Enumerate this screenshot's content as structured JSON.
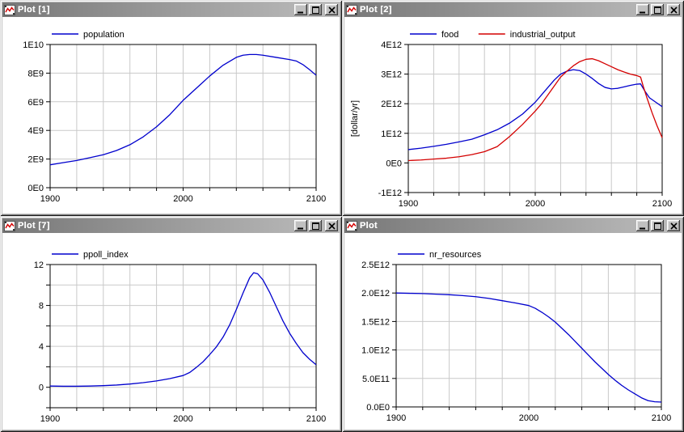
{
  "app": {
    "kind": "plot-window-grid"
  },
  "windows": [
    {
      "title": "Plot [1]"
    },
    {
      "title": "Plot [2]"
    },
    {
      "title": "Plot [7]"
    },
    {
      "title": "Plot"
    }
  ],
  "window_controls": {
    "minimize": "minimize",
    "maximize": "maximize",
    "close": "close"
  },
  "colors": {
    "curve_blue": "#0000cd",
    "curve_red": "#d40000",
    "grid": "#c9c9c9",
    "frame": "#000000",
    "titlebar_left": "#787878",
    "titlebar_right": "#bdbdbd",
    "chrome": "#c0c0c0",
    "plot_background": "#ffffff"
  },
  "chart_data": [
    {
      "type": "line",
      "window_title": "Plot [1]",
      "xlim": [
        1900,
        2100
      ],
      "x_grid_step": 20,
      "x_tick_labels": [
        {
          "value": 1900,
          "label": "1900"
        },
        {
          "value": 2000,
          "label": "2000"
        },
        {
          "value": 2100,
          "label": "2100"
        }
      ],
      "ylim": [
        0,
        10000000000.0
      ],
      "y_ticks": [
        {
          "value": 10000000000.0,
          "label": "1E10"
        },
        {
          "value": 8000000000.0,
          "label": "8E9"
        },
        {
          "value": 6000000000.0,
          "label": "6E9"
        },
        {
          "value": 4000000000.0,
          "label": "4E9"
        },
        {
          "value": 2000000000.0,
          "label": "2E9"
        },
        {
          "value": 0,
          "label": "0E0"
        }
      ],
      "ylabel": "",
      "grid": true,
      "legend_position": "top-left",
      "series": [
        {
          "name": "population",
          "color": "#0000cd",
          "x": [
            1900,
            1910,
            1920,
            1930,
            1940,
            1950,
            1960,
            1970,
            1980,
            1990,
            2000,
            2010,
            2020,
            2030,
            2040,
            2045,
            2050,
            2055,
            2060,
            2070,
            2080,
            2085,
            2090,
            2095,
            2100
          ],
          "y": [
            1600000000.0,
            1750000000.0,
            1900000000.0,
            2100000000.0,
            2300000000.0,
            2600000000.0,
            3000000000.0,
            3550000000.0,
            4250000000.0,
            5100000000.0,
            6100000000.0,
            6950000000.0,
            7800000000.0,
            8550000000.0,
            9100000000.0,
            9250000000.0,
            9300000000.0,
            9300000000.0,
            9250000000.0,
            9100000000.0,
            8950000000.0,
            8850000000.0,
            8600000000.0,
            8250000000.0,
            7850000000.0
          ]
        }
      ]
    },
    {
      "type": "line",
      "window_title": "Plot [2]",
      "xlim": [
        1900,
        2100
      ],
      "x_grid_step": 20,
      "x_tick_labels": [
        {
          "value": 1900,
          "label": "1900"
        },
        {
          "value": 2000,
          "label": "2000"
        },
        {
          "value": 2100,
          "label": "2100"
        }
      ],
      "ylim": [
        -1000000000000.0,
        4000000000000.0
      ],
      "y_ticks": [
        {
          "value": 4000000000000.0,
          "label": "4E12"
        },
        {
          "value": 3000000000000.0,
          "label": "3E12"
        },
        {
          "value": 2000000000000.0,
          "label": "2E12"
        },
        {
          "value": 1000000000000.0,
          "label": "1E12"
        },
        {
          "value": 0,
          "label": "0E0"
        },
        {
          "value": -1000000000000.0,
          "label": "-1E12"
        }
      ],
      "ylabel": "[dollar/yr]",
      "grid": true,
      "legend_position": "top-left",
      "series": [
        {
          "name": "food",
          "color": "#0000cd",
          "x": [
            1900,
            1910,
            1920,
            1930,
            1940,
            1950,
            1960,
            1970,
            1980,
            1990,
            2000,
            2005,
            2010,
            2015,
            2020,
            2025,
            2030,
            2035,
            2040,
            2045,
            2050,
            2055,
            2060,
            2065,
            2070,
            2075,
            2080,
            2083,
            2086,
            2090,
            2095,
            2100
          ],
          "y": [
            450000000000.0,
            500000000000.0,
            560000000000.0,
            630000000000.0,
            710000000000.0,
            800000000000.0,
            950000000000.0,
            1120000000000.0,
            1350000000000.0,
            1650000000000.0,
            2050000000000.0,
            2300000000000.0,
            2550000000000.0,
            2800000000000.0,
            3000000000000.0,
            3100000000000.0,
            3150000000000.0,
            3120000000000.0,
            3000000000000.0,
            2850000000000.0,
            2680000000000.0,
            2550000000000.0,
            2500000000000.0,
            2520000000000.0,
            2570000000000.0,
            2620000000000.0,
            2660000000000.0,
            2670000000000.0,
            2450000000000.0,
            2200000000000.0,
            2050000000000.0,
            1900000000000.0
          ]
        },
        {
          "name": "industrial_output",
          "color": "#d40000",
          "x": [
            1900,
            1910,
            1920,
            1930,
            1940,
            1950,
            1960,
            1970,
            1980,
            1990,
            2000,
            2005,
            2010,
            2015,
            2020,
            2025,
            2030,
            2035,
            2040,
            2045,
            2050,
            2055,
            2060,
            2065,
            2070,
            2075,
            2080,
            2083,
            2085,
            2088,
            2092,
            2096,
            2100
          ],
          "y": [
            80000000000.0,
            100000000000.0,
            130000000000.0,
            160000000000.0,
            210000000000.0,
            280000000000.0,
            380000000000.0,
            550000000000.0,
            900000000000.0,
            1300000000000.0,
            1750000000000.0,
            2000000000000.0,
            2300000000000.0,
            2600000000000.0,
            2900000000000.0,
            3100000000000.0,
            3280000000000.0,
            3420000000000.0,
            3500000000000.0,
            3520000000000.0,
            3450000000000.0,
            3350000000000.0,
            3250000000000.0,
            3150000000000.0,
            3070000000000.0,
            3000000000000.0,
            2950000000000.0,
            2900000000000.0,
            2600000000000.0,
            2200000000000.0,
            1700000000000.0,
            1250000000000.0,
            850000000000.0
          ]
        }
      ]
    },
    {
      "type": "line",
      "window_title": "Plot [7]",
      "xlim": [
        1900,
        2100
      ],
      "x_grid_step": 20,
      "x_tick_labels": [
        {
          "value": 1900,
          "label": "1900"
        },
        {
          "value": 2000,
          "label": "2000"
        },
        {
          "value": 2100,
          "label": "2100"
        }
      ],
      "ylim": [
        -2,
        12
      ],
      "y_ticks": [
        {
          "value": 12,
          "label": "12"
        },
        {
          "value": 10,
          "label": ""
        },
        {
          "value": 8,
          "label": "8"
        },
        {
          "value": 6,
          "label": ""
        },
        {
          "value": 4,
          "label": "4"
        },
        {
          "value": 2,
          "label": ""
        },
        {
          "value": 0,
          "label": "0"
        },
        {
          "value": -2,
          "label": ""
        }
      ],
      "ylabel": "",
      "grid": true,
      "legend_position": "top-left",
      "series": [
        {
          "name": "ppoll_index",
          "color": "#0000cd",
          "x": [
            1900,
            1910,
            1920,
            1930,
            1940,
            1950,
            1960,
            1970,
            1980,
            1990,
            2000,
            2005,
            2010,
            2015,
            2020,
            2025,
            2030,
            2035,
            2040,
            2045,
            2050,
            2053,
            2056,
            2060,
            2065,
            2070,
            2075,
            2080,
            2085,
            2090,
            2095,
            2100
          ],
          "y": [
            0.12,
            0.1,
            0.1,
            0.12,
            0.16,
            0.22,
            0.32,
            0.45,
            0.62,
            0.85,
            1.15,
            1.45,
            1.95,
            2.5,
            3.2,
            3.95,
            4.9,
            6.1,
            7.6,
            9.2,
            10.7,
            11.2,
            11.1,
            10.5,
            9.3,
            7.9,
            6.5,
            5.3,
            4.3,
            3.4,
            2.75,
            2.2
          ]
        }
      ]
    },
    {
      "type": "line",
      "window_title": "Plot",
      "xlim": [
        1900,
        2100
      ],
      "x_grid_step": 20,
      "x_tick_labels": [
        {
          "value": 1900,
          "label": "1900"
        },
        {
          "value": 2000,
          "label": "2000"
        },
        {
          "value": 2100,
          "label": "2100"
        }
      ],
      "ylim": [
        0,
        2500000000000.0
      ],
      "y_ticks": [
        {
          "value": 2500000000000.0,
          "label": "2.5E12"
        },
        {
          "value": 2000000000000.0,
          "label": "2.0E12"
        },
        {
          "value": 1500000000000.0,
          "label": "1.5E12"
        },
        {
          "value": 1000000000000.0,
          "label": "1.0E12"
        },
        {
          "value": 500000000000.0,
          "label": "5.0E11"
        },
        {
          "value": 0,
          "label": "0.0E0"
        }
      ],
      "ylabel": "",
      "grid": true,
      "legend_position": "top-left",
      "series": [
        {
          "name": "nr_resources",
          "color": "#0000cd",
          "x": [
            1900,
            1910,
            1920,
            1930,
            1940,
            1950,
            1960,
            1970,
            1980,
            1990,
            2000,
            2005,
            2010,
            2015,
            2020,
            2025,
            2030,
            2035,
            2040,
            2045,
            2050,
            2055,
            2060,
            2065,
            2070,
            2075,
            2080,
            2085,
            2090,
            2095,
            2100
          ],
          "y": [
            2000000000000.0,
            1995000000000.0,
            1990000000000.0,
            1980000000000.0,
            1970000000000.0,
            1955000000000.0,
            1935000000000.0,
            1905000000000.0,
            1865000000000.0,
            1825000000000.0,
            1780000000000.0,
            1730000000000.0,
            1660000000000.0,
            1580000000000.0,
            1490000000000.0,
            1380000000000.0,
            1270000000000.0,
            1150000000000.0,
            1030000000000.0,
            910000000000.0,
            790000000000.0,
            680000000000.0,
            570000000000.0,
            470000000000.0,
            380000000000.0,
            300000000000.0,
            230000000000.0,
            160000000000.0,
            110000000000.0,
            90000000000.0,
            85000000000.0
          ]
        }
      ]
    }
  ]
}
